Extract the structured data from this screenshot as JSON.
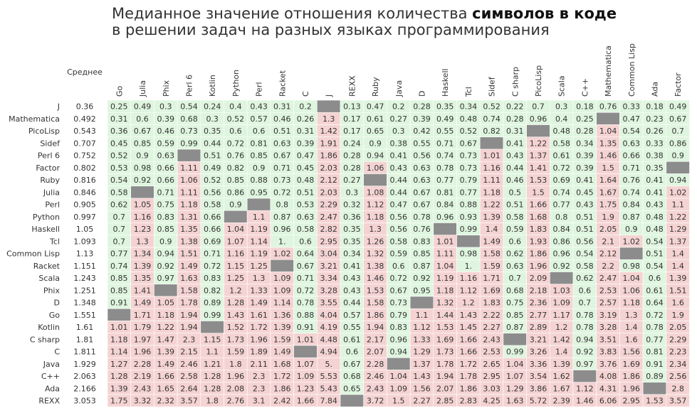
{
  "chart_data": {
    "type": "heatmap",
    "title_line1_pre": "Медианное значение отношения количества ",
    "title_line1_bold": "символов в коде",
    "title_line2": "в решении задач на разных языках программирования",
    "avg_label": "Среднее",
    "columns": [
      "Go",
      "Julia",
      "Phix",
      "Perl 6",
      "Kotlin",
      "Python",
      "Perl",
      "Racket",
      "C",
      "J",
      "REXX",
      "Ruby",
      "Java",
      "D",
      "Haskell",
      "Tcl",
      "Sidef",
      "C sharp",
      "PicoLisp",
      "Scala",
      "C++",
      "Mathematica",
      "Common Lisp",
      "Ada",
      "Factor"
    ],
    "rows": [
      {
        "name": "J",
        "avg": "0.36",
        "values": [
          "0.25",
          "0.49",
          "0.3",
          "0.54",
          "0.24",
          "0.4",
          "0.43",
          "0.31",
          "0.2",
          "",
          "0.13",
          "0.47",
          "0.2",
          "0.28",
          "0.35",
          "0.34",
          "0.52",
          "0.22",
          "0.7",
          "0.3",
          "0.18",
          "0.76",
          "0.33",
          "0.18",
          "0.49"
        ]
      },
      {
        "name": "Mathematica",
        "avg": "0.492",
        "values": [
          "0.31",
          "0.6",
          "0.39",
          "0.68",
          "0.3",
          "0.52",
          "0.57",
          "0.46",
          "0.26",
          "1.3",
          "0.17",
          "0.61",
          "0.27",
          "0.39",
          "0.49",
          "0.48",
          "0.74",
          "0.28",
          "0.96",
          "0.4",
          "0.25",
          "",
          "0.47",
          "0.23",
          "0.67"
        ]
      },
      {
        "name": "PicoLisp",
        "avg": "0.543",
        "values": [
          "0.36",
          "0.67",
          "0.46",
          "0.73",
          "0.35",
          "0.6",
          "0.6",
          "0.51",
          "0.31",
          "1.42",
          "0.17",
          "0.65",
          "0.3",
          "0.42",
          "0.55",
          "0.52",
          "0.82",
          "0.31",
          "",
          "0.48",
          "0.28",
          "1.04",
          "0.54",
          "0.26",
          "0.7"
        ]
      },
      {
        "name": "Sidef",
        "avg": "0.707",
        "values": [
          "0.45",
          "0.85",
          "0.59",
          "0.99",
          "0.44",
          "0.72",
          "0.81",
          "0.63",
          "0.39",
          "1.91",
          "0.24",
          "0.9",
          "0.38",
          "0.55",
          "0.71",
          "0.67",
          "",
          "0.41",
          "1.22",
          "0.58",
          "0.34",
          "1.35",
          "0.63",
          "0.33",
          "0.86"
        ]
      },
      {
        "name": "Perl 6",
        "avg": "0.752",
        "values": [
          "0.52",
          "0.9",
          "0.63",
          "",
          "0.51",
          "0.76",
          "0.85",
          "0.67",
          "0.47",
          "1.86",
          "0.28",
          "0.94",
          "0.41",
          "0.56",
          "0.74",
          "0.73",
          "1.01",
          "0.43",
          "1.37",
          "0.61",
          "0.39",
          "1.46",
          "0.66",
          "0.38",
          "0.9"
        ]
      },
      {
        "name": "Factor",
        "avg": "0.802",
        "values": [
          "0.53",
          "0.98",
          "0.66",
          "1.11",
          "0.49",
          "0.82",
          "0.9",
          "0.71",
          "0.45",
          "2.03",
          "0.28",
          "1.06",
          "0.43",
          "0.63",
          "0.78",
          "0.73",
          "1.16",
          "0.44",
          "1.41",
          "0.72",
          "0.39",
          "1.5",
          "0.71",
          "0.35",
          ""
        ]
      },
      {
        "name": "Ruby",
        "avg": "0.816",
        "values": [
          "0.54",
          "0.92",
          "0.66",
          "1.06",
          "0.52",
          "0.85",
          "0.88",
          "0.73",
          "0.48",
          "2.12",
          "0.27",
          "",
          "0.44",
          "0.63",
          "0.77",
          "0.79",
          "1.11",
          "0.46",
          "1.53",
          "0.69",
          "0.41",
          "1.64",
          "0.76",
          "0.41",
          "0.94"
        ]
      },
      {
        "name": "Julia",
        "avg": "0.846",
        "values": [
          "0.58",
          "",
          "0.71",
          "1.11",
          "0.56",
          "0.86",
          "0.95",
          "0.72",
          "0.51",
          "2.03",
          "0.3",
          "1.08",
          "0.44",
          "0.67",
          "0.81",
          "0.77",
          "1.18",
          "0.5",
          "1.5",
          "0.74",
          "0.45",
          "1.67",
          "0.74",
          "0.41",
          "1.02"
        ]
      },
      {
        "name": "Perl",
        "avg": "0.905",
        "values": [
          "0.62",
          "1.05",
          "0.75",
          "1.18",
          "0.58",
          "0.9",
          "",
          "0.8",
          "0.53",
          "2.29",
          "0.32",
          "1.12",
          "0.47",
          "0.67",
          "0.84",
          "0.88",
          "1.22",
          "0.51",
          "1.66",
          "0.77",
          "0.43",
          "1.75",
          "0.84",
          "0.43",
          "1.1"
        ]
      },
      {
        "name": "Python",
        "avg": "0.997",
        "values": [
          "0.7",
          "1.16",
          "0.83",
          "1.31",
          "0.66",
          "",
          "1.1",
          "0.87",
          "0.63",
          "2.47",
          "0.36",
          "1.18",
          "0.56",
          "0.78",
          "0.96",
          "0.93",
          "1.39",
          "0.58",
          "1.68",
          "0.8",
          "0.51",
          "1.9",
          "0.87",
          "0.48",
          "1.22"
        ]
      },
      {
        "name": "Haskell",
        "avg": "1.05",
        "values": [
          "0.7",
          "1.23",
          "0.85",
          "1.35",
          "0.66",
          "1.04",
          "1.19",
          "0.96",
          "0.58",
          "2.82",
          "0.35",
          "1.3",
          "0.56",
          "0.76",
          "",
          "0.99",
          "1.4",
          "0.59",
          "1.83",
          "0.84",
          "0.51",
          "2.05",
          "0.9",
          "0.48",
          "1.29"
        ]
      },
      {
        "name": "Tcl",
        "avg": "1.093",
        "values": [
          "0.7",
          "1.3",
          "0.9",
          "1.38",
          "0.69",
          "1.07",
          "1.14",
          "1.",
          "0.6",
          "2.95",
          "0.35",
          "1.26",
          "0.58",
          "0.83",
          "1.01",
          "",
          "1.49",
          "0.6",
          "1.93",
          "0.86",
          "0.56",
          "2.1",
          "1.02",
          "0.54",
          "1.37"
        ]
      },
      {
        "name": "Common Lisp",
        "avg": "1.13",
        "values": [
          "0.77",
          "1.34",
          "0.94",
          "1.51",
          "0.71",
          "1.16",
          "1.19",
          "1.02",
          "0.64",
          "3.04",
          "0.34",
          "1.32",
          "0.59",
          "0.85",
          "1.11",
          "0.98",
          "1.58",
          "0.62",
          "1.86",
          "0.96",
          "0.54",
          "2.12",
          "",
          "0.51",
          "1.4"
        ]
      },
      {
        "name": "Racket",
        "avg": "1.151",
        "values": [
          "0.74",
          "1.39",
          "0.92",
          "1.49",
          "0.72",
          "1.15",
          "1.25",
          "",
          "0.67",
          "3.21",
          "0.41",
          "1.38",
          "0.6",
          "0.87",
          "1.04",
          "1.",
          "1.59",
          "0.63",
          "1.96",
          "0.92",
          "0.58",
          "2.2",
          "0.98",
          "0.54",
          "1.4"
        ]
      },
      {
        "name": "Scala",
        "avg": "1.243",
        "values": [
          "0.85",
          "1.35",
          "0.97",
          "1.63",
          "0.83",
          "1.25",
          "1.3",
          "1.09",
          "0.71",
          "3.34",
          "0.43",
          "1.46",
          "0.72",
          "0.92",
          "1.19",
          "1.16",
          "1.71",
          "0.7",
          "2.09",
          "",
          "0.62",
          "2.47",
          "1.04",
          "0.6",
          "1.39"
        ]
      },
      {
        "name": "Phix",
        "avg": "1.251",
        "values": [
          "0.85",
          "1.41",
          "",
          "1.58",
          "0.82",
          "1.2",
          "1.33",
          "1.09",
          "0.72",
          "3.28",
          "0.43",
          "1.53",
          "0.67",
          "0.95",
          "1.18",
          "1.12",
          "1.69",
          "0.68",
          "2.18",
          "1.03",
          "0.6",
          "2.53",
          "1.06",
          "0.61",
          "1.51"
        ]
      },
      {
        "name": "D",
        "avg": "1.348",
        "values": [
          "0.91",
          "1.49",
          "1.05",
          "1.78",
          "0.89",
          "1.28",
          "1.49",
          "1.14",
          "0.78",
          "3.55",
          "0.44",
          "1.58",
          "0.73",
          "",
          "1.32",
          "1.2",
          "1.83",
          "0.75",
          "2.36",
          "1.09",
          "0.7",
          "2.57",
          "1.18",
          "0.64",
          "1.6"
        ]
      },
      {
        "name": "Go",
        "avg": "1.551",
        "values": [
          "",
          "1.71",
          "1.18",
          "1.94",
          "0.99",
          "1.43",
          "1.61",
          "1.36",
          "0.88",
          "4.04",
          "0.57",
          "1.86",
          "0.79",
          "1.1",
          "1.44",
          "1.43",
          "2.22",
          "0.85",
          "2.77",
          "1.17",
          "0.78",
          "3.19",
          "1.3",
          "0.72",
          "1.9"
        ]
      },
      {
        "name": "Kotlin",
        "avg": "1.61",
        "values": [
          "1.01",
          "1.79",
          "1.22",
          "1.94",
          "",
          "1.52",
          "1.72",
          "1.39",
          "0.91",
          "4.19",
          "0.55",
          "1.94",
          "0.83",
          "1.12",
          "1.53",
          "1.45",
          "2.27",
          "0.87",
          "2.89",
          "1.2",
          "0.78",
          "3.28",
          "1.4",
          "0.78",
          "2.05"
        ]
      },
      {
        "name": "C sharp",
        "avg": "1.81",
        "values": [
          "1.18",
          "1.97",
          "1.47",
          "2.3",
          "1.15",
          "1.73",
          "1.96",
          "1.59",
          "1.01",
          "4.48",
          "0.61",
          "2.17",
          "0.96",
          "1.33",
          "1.69",
          "1.66",
          "2.43",
          "",
          "3.21",
          "1.42",
          "0.94",
          "3.51",
          "1.6",
          "0.77",
          "2.29"
        ]
      },
      {
        "name": "C",
        "avg": "1.811",
        "values": [
          "1.14",
          "1.96",
          "1.39",
          "2.15",
          "1.1",
          "1.59",
          "1.89",
          "1.49",
          "",
          "4.94",
          "0.6",
          "2.07",
          "0.94",
          "1.29",
          "1.73",
          "1.66",
          "2.53",
          "0.99",
          "3.26",
          "1.4",
          "0.92",
          "3.83",
          "1.56",
          "0.81",
          "2.23"
        ]
      },
      {
        "name": "Java",
        "avg": "1.929",
        "values": [
          "1.27",
          "2.28",
          "1.49",
          "2.46",
          "1.21",
          "1.8",
          "2.11",
          "1.68",
          "1.07",
          "5.",
          "0.67",
          "2.28",
          "",
          "1.37",
          "1.78",
          "1.72",
          "2.65",
          "1.04",
          "3.36",
          "1.39",
          "0.97",
          "3.76",
          "1.69",
          "0.91",
          "2.34"
        ]
      },
      {
        "name": "C++",
        "avg": "2.063",
        "values": [
          "1.28",
          "2.19",
          "1.66",
          "2.58",
          "1.28",
          "1.96",
          "2.3",
          "1.72",
          "1.09",
          "5.53",
          "0.68",
          "2.46",
          "1.04",
          "1.43",
          "1.94",
          "1.78",
          "2.95",
          "1.07",
          "3.54",
          "1.62",
          "",
          "4.08",
          "1.86",
          "0.89",
          "2.56"
        ]
      },
      {
        "name": "Ada",
        "avg": "2.166",
        "values": [
          "1.39",
          "2.43",
          "1.65",
          "2.64",
          "1.28",
          "2.08",
          "2.3",
          "1.86",
          "1.23",
          "5.43",
          "0.65",
          "2.43",
          "1.09",
          "1.56",
          "2.07",
          "1.86",
          "3.03",
          "1.29",
          "3.86",
          "1.67",
          "1.12",
          "4.31",
          "1.96",
          "",
          "2.8"
        ]
      },
      {
        "name": "REXX",
        "avg": "3.053",
        "values": [
          "1.75",
          "3.32",
          "2.32",
          "3.57",
          "1.8",
          "2.76",
          "3.1",
          "2.42",
          "1.66",
          "7.84",
          "",
          "3.72",
          "1.5",
          "2.27",
          "2.85",
          "2.83",
          "4.25",
          "1.63",
          "5.72",
          "2.39",
          "1.46",
          "6.06",
          "2.95",
          "1.53",
          "3.57"
        ]
      }
    ],
    "colors": {
      "low": "#dff5df",
      "high": "#f5d3d3",
      "empty": "#8c8c8c",
      "text": "#333333",
      "rule": "#ffffff"
    },
    "threshold": 1.0
  }
}
